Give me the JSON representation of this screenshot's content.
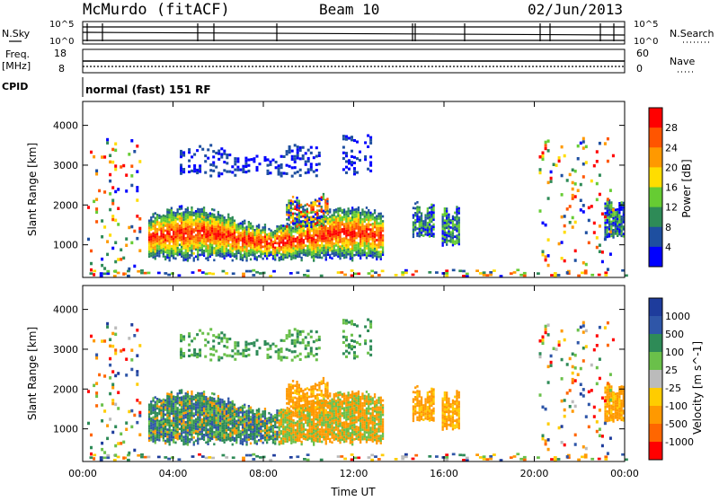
{
  "header": {
    "station": "McMurdo (fitACF)",
    "beam": "Beam 10",
    "date": "02/Jun/2013"
  },
  "noise_panel": {
    "left_label": "N.Sky",
    "right_label": "N.Search",
    "left_ticks": [
      "10^5",
      "10^0"
    ],
    "right_ticks": [
      "10^5",
      "10^0"
    ]
  },
  "freq_panel": {
    "left_label_top": "Freq.",
    "left_label_unit": "[MHz]",
    "left_ticks": [
      "18",
      "8"
    ],
    "right_label": "Nave",
    "right_ticks": [
      "60",
      "0"
    ]
  },
  "cpid": {
    "label": "CPID",
    "text": "normal (fast) 151 RF"
  },
  "colors": {
    "power_scale": [
      "#0000ff",
      "#1e4fa0",
      "#2e8b57",
      "#66cc33",
      "#ffdd00",
      "#ff9900",
      "#ff5500",
      "#ff0000"
    ],
    "velocity_scale": [
      "#1e3c9c",
      "#2f56a8",
      "#2e8b57",
      "#6ac04a",
      "#bbbbbb",
      "#ffcc00",
      "#ff9900",
      "#ff6600",
      "#ff0000"
    ]
  },
  "chart_data": [
    {
      "type": "heatmap",
      "name": "power",
      "ylabel": "Slant Range [km]",
      "xlabel": "",
      "ylim": [
        180,
        4600
      ],
      "yticks": [
        1000,
        2000,
        3000,
        4000
      ],
      "xlim": [
        0,
        24
      ],
      "xticks": [
        0,
        4,
        8,
        12,
        16,
        20,
        24
      ],
      "colorbar": {
        "label": "Power [dB]",
        "range": [
          0,
          32
        ],
        "ticks": [
          "4",
          "8",
          "12",
          "16",
          "20",
          "24",
          "28"
        ]
      }
    },
    {
      "type": "heatmap",
      "name": "velocity",
      "ylabel": "Slant Range [km]",
      "xlabel": "Time UT",
      "ylim": [
        180,
        4600
      ],
      "yticks": [
        1000,
        2000,
        3000,
        4000
      ],
      "xlim": [
        0,
        24
      ],
      "xticks": [
        0,
        4,
        8,
        12,
        16,
        20,
        24
      ],
      "xticklabels": [
        "00:00",
        "04:00",
        "08:00",
        "12:00",
        "16:00",
        "20:00",
        "00:00"
      ],
      "colorbar": {
        "label": "Velocity [m s^-1]",
        "ticks": [
          "1000",
          "500",
          "100",
          "25",
          "-25",
          "-100",
          "-500",
          "-1000"
        ]
      }
    }
  ]
}
